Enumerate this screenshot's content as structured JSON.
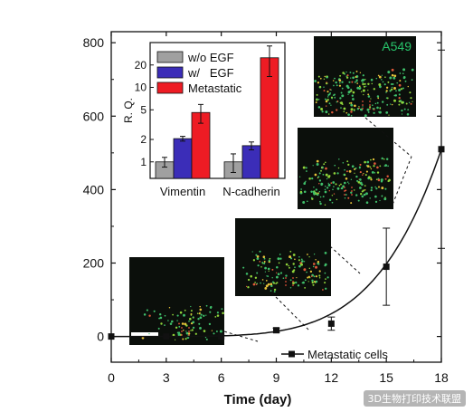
{
  "watermark": "3D生物打印技术联盟",
  "chart_data": [
    {
      "type": "line",
      "xlabel": "Time (day)",
      "ylabel": "",
      "xlim": [
        0,
        18
      ],
      "ylim": [
        -70,
        830
      ],
      "xticks": [
        0,
        3,
        6,
        9,
        12,
        15,
        18
      ],
      "yticks": [
        0,
        200,
        400,
        600,
        800
      ],
      "legend_position": "bottom-right",
      "series": [
        {
          "name": "Metastatic cells",
          "x": [
            0,
            3,
            6,
            9,
            12,
            15,
            18
          ],
          "y": [
            0,
            0,
            0,
            17,
            35,
            190,
            510
          ],
          "err": [
            0,
            0,
            0,
            6,
            18,
            105,
            270
          ]
        }
      ],
      "insets": [
        {
          "label": "A549",
          "position": "top-right"
        }
      ]
    },
    {
      "type": "bar",
      "scale": "log",
      "ylabel": "R. Q.",
      "ylim": [
        0.6,
        40
      ],
      "yticks": [
        1,
        2,
        5,
        10,
        20
      ],
      "categories": [
        "Vimentin",
        "N-cadherin"
      ],
      "legend_position": "top-left",
      "series": [
        {
          "name": "w/o EGF",
          "color": "#a0a0a0",
          "values": [
            1.0,
            1.0
          ],
          "err": [
            0.15,
            0.28
          ]
        },
        {
          "name": "w/   EGF",
          "color": "#3b2db8",
          "values": [
            2.05,
            1.65
          ],
          "err": [
            0.15,
            0.2
          ]
        },
        {
          "name": "Metastatic",
          "color": "#ee1c24",
          "values": [
            4.6,
            25
          ],
          "err": [
            1.3,
            11
          ]
        }
      ]
    }
  ]
}
